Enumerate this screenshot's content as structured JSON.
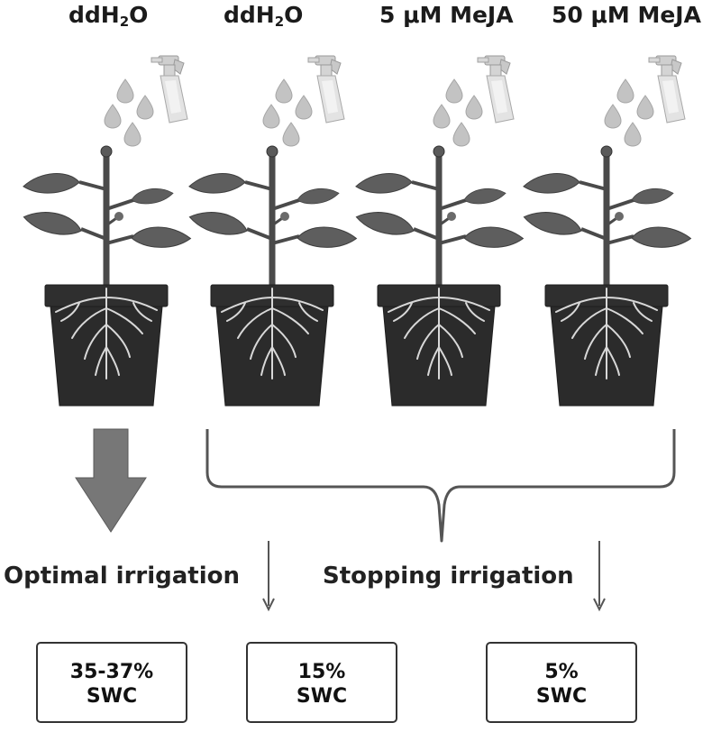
{
  "treatments": [
    {
      "prefix": "ddH",
      "sub": "2",
      "suffix": "O"
    },
    {
      "prefix": "ddH",
      "sub": "2",
      "suffix": "O"
    },
    {
      "prefix": "5 μM MeJA",
      "sub": "",
      "suffix": ""
    },
    {
      "prefix": "50 μM MeJA",
      "sub": "",
      "suffix": ""
    }
  ],
  "irrigation": {
    "optimal": "Optimal irrigation",
    "stopping": "Stopping irrigation"
  },
  "swc_boxes": [
    {
      "value": "35-37%",
      "unit": "SWC"
    },
    {
      "value": "15%",
      "unit": "SWC"
    },
    {
      "value": "5%",
      "unit": "SWC"
    }
  ],
  "colors": {
    "pot": "#2b2b2b",
    "leaf": "#5c5c5c",
    "stem": "#4a4a4a",
    "drop": "#bdbdbd",
    "arrow_big": "#757575",
    "line": "#555555"
  }
}
